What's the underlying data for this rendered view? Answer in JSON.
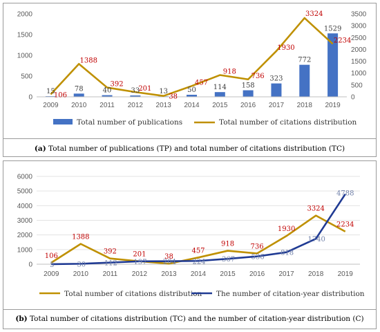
{
  "chart_data": [
    {
      "id": "a",
      "type": "bar+line",
      "categories": [
        "2009",
        "2010",
        "2011",
        "2012",
        "2013",
        "2014",
        "2015",
        "2016",
        "2017",
        "2018",
        "2019"
      ],
      "series": [
        {
          "name": "Total number of publications",
          "kind": "bar",
          "axis": "left",
          "color": "#4472c4",
          "values": [
            15,
            78,
            40,
            33,
            13,
            50,
            114,
            158,
            323,
            772,
            1529
          ],
          "labels": [
            "15",
            "78",
            "40",
            "33",
            "13",
            "50",
            "114",
            "158",
            "323",
            "772",
            "1529"
          ]
        },
        {
          "name": "Total number of citations distribution",
          "kind": "line",
          "axis": "right",
          "color": "#bf9000",
          "values": [
            106,
            1388,
            392,
            201,
            38,
            457,
            918,
            736,
            1930,
            3324,
            2234
          ],
          "labels": [
            "106",
            "1388",
            "392",
            "201",
            "38",
            "457",
            "918",
            "736",
            "1930",
            "3324",
            "2234"
          ]
        }
      ],
      "y_left": {
        "min": 0,
        "max": 2000,
        "ticks": [
          "0",
          "500",
          "1000",
          "1500",
          "2000"
        ]
      },
      "y_right": {
        "min": 0,
        "max": 3500,
        "ticks": [
          "0",
          "500",
          "1000",
          "1500",
          "2000",
          "2500",
          "3000",
          "3500"
        ]
      },
      "grid": false,
      "legend": "bottom",
      "caption_letter": "(a)",
      "caption_text": "Total number of publications (TP) and total number of citations distribution (TC)"
    },
    {
      "id": "b",
      "type": "line",
      "categories": [
        "2009",
        "2010",
        "2011",
        "2012",
        "2013",
        "2014",
        "2015",
        "2016",
        "2017",
        "2018",
        "2019"
      ],
      "series": [
        {
          "name": "Total number of citations distribution",
          "kind": "line",
          "color": "#bf9000",
          "values": [
            106,
            1388,
            392,
            201,
            38,
            457,
            918,
            736,
            1930,
            3324,
            2234
          ],
          "labels": [
            "106",
            "1388",
            "392",
            "201",
            "38",
            "457",
            "918",
            "736",
            "1930",
            "3324",
            "2234"
          ]
        },
        {
          "name": "The number of citation-year distribution",
          "kind": "line",
          "color": "#1f3a93",
          "values": [
            5,
            30,
            112,
            197,
            204,
            224,
            367,
            536,
            818,
            1740,
            4788
          ],
          "labels": [
            "5",
            "30",
            "112",
            "197",
            "204",
            "224",
            "367",
            "536",
            "818",
            "1740",
            "4788"
          ]
        }
      ],
      "y": {
        "min": 0,
        "max": 6000,
        "ticks": [
          "0",
          "1000",
          "2000",
          "3000",
          "4000",
          "5000",
          "6000"
        ]
      },
      "grid": true,
      "legend": "bottom",
      "caption_letter": "(b)",
      "caption_text": "Total number of citations distribution (TC) and the number of citation-year distribution (C)"
    }
  ]
}
